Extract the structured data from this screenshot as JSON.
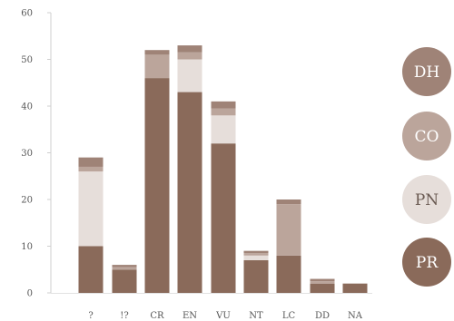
{
  "chart_data": {
    "type": "bar",
    "stacked": true,
    "title": "",
    "xlabel": "",
    "ylabel": "",
    "ylim": [
      0,
      60
    ],
    "yticks": [
      0,
      10,
      20,
      30,
      40,
      50,
      60
    ],
    "grid": false,
    "legend_position": "right",
    "categories": [
      "?",
      "!?",
      "CR",
      "EN",
      "VU",
      "NT",
      "LC",
      "DD",
      "NA"
    ],
    "series": [
      {
        "name": "PR",
        "color": "#8a6a5a",
        "values": [
          10,
          5,
          46,
          43,
          32,
          7,
          8,
          2,
          2
        ]
      },
      {
        "name": "PN",
        "color": "#e6deda",
        "values": [
          16,
          0,
          0,
          7,
          6,
          1,
          0,
          0,
          0
        ]
      },
      {
        "name": "CO",
        "color": "#bba59b",
        "values": [
          1,
          0.5,
          5,
          1.5,
          1.5,
          0.5,
          11,
          0.5,
          0
        ]
      },
      {
        "name": "DH",
        "color": "#9f8377",
        "values": [
          2,
          0.5,
          1,
          1.5,
          1.5,
          0.5,
          1,
          0.5,
          0
        ]
      }
    ],
    "legend": [
      {
        "label": "DH",
        "color": "#9f8377",
        "text_color": "#ffffff"
      },
      {
        "label": "CO",
        "color": "#bba59b",
        "text_color": "#ffffff"
      },
      {
        "label": "PN",
        "color": "#e6deda",
        "text_color": "#6a5a52"
      },
      {
        "label": "PR",
        "color": "#8a6a5a",
        "text_color": "#ffffff"
      }
    ]
  }
}
